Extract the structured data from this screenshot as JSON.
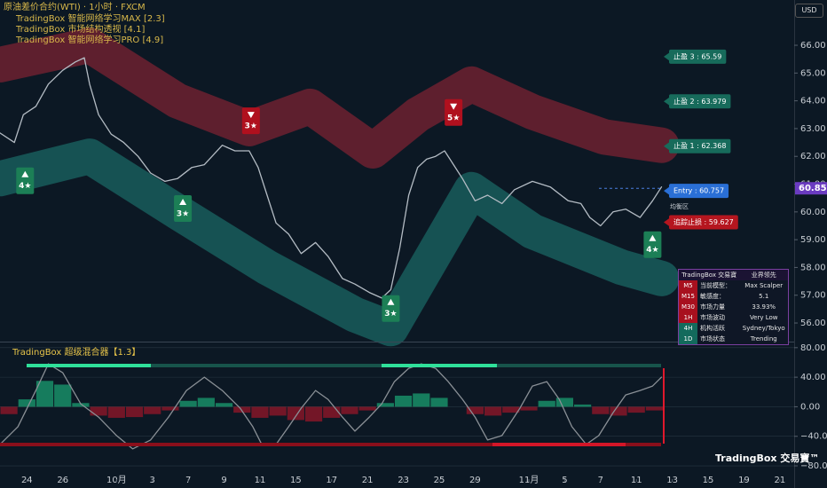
{
  "chart_data": [
    {
      "type": "line",
      "title": "原油差价合约(WTI) · 1小时 · FXCM",
      "indicators": [
        "TradingBox  智能网络学习MAX [2.3]",
        "TradingBox  市场结构透视 [4.1]",
        "TradingBox  智能网络学习PRO [4.9]"
      ],
      "xlim": [
        -1.5,
        42.8
      ],
      "ylim": [
        55.33,
        67.63
      ],
      "yticks": [
        {
          "value": 56,
          "label": "56.00"
        },
        {
          "value": 57,
          "label": "57.00"
        },
        {
          "value": 58,
          "label": "58.00"
        },
        {
          "value": 59,
          "label": "59.00"
        },
        {
          "value": 60,
          "label": "60.00"
        },
        {
          "value": 61,
          "label": "61.00"
        },
        {
          "value": 62,
          "label": "62.00"
        },
        {
          "value": 63,
          "label": "63.00"
        },
        {
          "value": 64,
          "label": "64.00"
        },
        {
          "value": 65,
          "label": "65.00"
        },
        {
          "value": 66,
          "label": "66.00"
        }
      ],
      "grid": false,
      "series": [
        {
          "style": "band",
          "color": "#7a2232",
          "x": [
            -1.5,
            3.5,
            8.4,
            12.4,
            15.8,
            19.3,
            21.8,
            24.8,
            28.2,
            32.2,
            35.4
          ],
          "values": [
            65.3,
            66.0,
            64.0,
            63.0,
            63.8,
            62.2,
            63.5,
            64.6,
            63.6,
            62.7,
            62.4
          ]
        },
        {
          "style": "band",
          "color": "#1a6663",
          "x": [
            -1.5,
            3.5,
            8.4,
            13.4,
            18.3,
            20.3,
            24.8,
            28.2,
            33.2,
            35.4
          ],
          "values": [
            61.2,
            62.0,
            60.0,
            58.0,
            56.3,
            55.8,
            60.8,
            59.3,
            58.0,
            57.6
          ]
        },
        {
          "style": "line",
          "color": "#b4bcc4",
          "x": [
            -1.5,
            -0.7,
            -0.2,
            0.5,
            1.2,
            2.0,
            2.7,
            3.2,
            3.5,
            4.0,
            4.7,
            5.4,
            6.2,
            6.9,
            7.7,
            8.4,
            9.2,
            9.9,
            10.9,
            11.6,
            12.4,
            12.9,
            13.4,
            13.9,
            14.6,
            15.3,
            16.1,
            16.8,
            17.6,
            18.3,
            19.1,
            19.8,
            20.3,
            20.8,
            21.3,
            21.8,
            22.3,
            22.8,
            23.3,
            23.8,
            24.3,
            25.0,
            25.7,
            26.5,
            27.2,
            28.2,
            29.2,
            30.2,
            30.9,
            31.4,
            32.0,
            32.7,
            33.4,
            34.2,
            34.9,
            35.4
          ],
          "values": [
            62.84,
            62.5,
            63.5,
            63.8,
            64.6,
            65.1,
            65.4,
            65.55,
            64.6,
            63.5,
            62.8,
            62.5,
            62.0,
            61.4,
            61.1,
            61.2,
            61.6,
            61.7,
            62.4,
            62.2,
            62.2,
            61.6,
            60.6,
            59.6,
            59.2,
            58.5,
            58.9,
            58.4,
            57.6,
            57.4,
            57.1,
            56.9,
            57.2,
            58.7,
            60.6,
            61.6,
            61.9,
            62.0,
            62.2,
            61.7,
            61.2,
            60.4,
            60.6,
            60.3,
            60.8,
            61.1,
            60.9,
            60.4,
            60.3,
            59.8,
            59.5,
            60.0,
            60.1,
            59.8,
            60.4,
            60.9
          ]
        }
      ],
      "signals": [
        {
          "kind": "buy",
          "label": "4★",
          "x": -0.1,
          "y": 61.6
        },
        {
          "kind": "buy",
          "label": "3★",
          "x": 8.7,
          "y": 60.6
        },
        {
          "kind": "sell",
          "label": "3★",
          "x": 12.5,
          "y": 62.8
        },
        {
          "kind": "buy",
          "label": "3★",
          "x": 20.3,
          "y": 57.0
        },
        {
          "kind": "sell",
          "label": "5★",
          "x": 23.8,
          "y": 63.1
        },
        {
          "kind": "buy",
          "label": "4★",
          "x": 34.9,
          "y": 59.3
        }
      ],
      "levels": [
        {
          "value": 65.59,
          "label": "止盈 3 : 65.59",
          "color": "#176b5b"
        },
        {
          "value": 63.979,
          "label": "止盈 2 : 63.979",
          "color": "#176b5b"
        },
        {
          "value": 62.368,
          "label": "止盈 1 : 62.368",
          "color": "#176b5b"
        },
        {
          "value": 60.757,
          "label": "Entry : 60.757",
          "color": "#2a6fd6"
        },
        {
          "value": 59.627,
          "label": "追踪止损 : 59.627",
          "color": "#b5161f"
        }
      ],
      "last_price": {
        "value": 60.85,
        "color": "#6a3bc0"
      },
      "zone_label": "均衡区"
    },
    {
      "type": "line",
      "title": "TradingBox   超级混合器【1.3】",
      "xlim": [
        -1.5,
        42.8
      ],
      "ylim": [
        -98,
        87
      ],
      "yticks": [
        {
          "value": 80,
          "label": "80.00"
        },
        {
          "value": 40,
          "label": "40.00"
        },
        {
          "value": 0,
          "label": "0.00"
        },
        {
          "value": -40,
          "label": "−40.00"
        },
        {
          "value": -80,
          "label": "−80.00"
        }
      ],
      "xticks": [
        {
          "value": 0,
          "label": "24"
        },
        {
          "value": 2,
          "label": "26"
        },
        {
          "value": 5,
          "label": "10月"
        },
        {
          "value": 7,
          "label": "3"
        },
        {
          "value": 9,
          "label": "7"
        },
        {
          "value": 11,
          "label": "9"
        },
        {
          "value": 13,
          "label": "11"
        },
        {
          "value": 15,
          "label": "15"
        },
        {
          "value": 17,
          "label": "17"
        },
        {
          "value": 19,
          "label": "21"
        },
        {
          "value": 21,
          "label": "23"
        },
        {
          "value": 23,
          "label": "25"
        },
        {
          "value": 25,
          "label": "29"
        },
        {
          "value": 28,
          "label": "11月"
        },
        {
          "value": 30,
          "label": "5"
        },
        {
          "value": 32,
          "label": "7"
        },
        {
          "value": 34,
          "label": "11"
        },
        {
          "value": 36,
          "label": "13"
        },
        {
          "value": 38,
          "label": "15"
        },
        {
          "value": 40,
          "label": "19"
        },
        {
          "value": 42,
          "label": "21"
        }
      ],
      "grid": true,
      "series": [
        {
          "style": "columns",
          "color": "#1fcf8c",
          "negative_color": "#c8152a",
          "x": [
            -1,
            0,
            1,
            2,
            3,
            4,
            5,
            6,
            7,
            8,
            9,
            10,
            11,
            12,
            13,
            14,
            15,
            16,
            17,
            18,
            19,
            20,
            21,
            22,
            23,
            24,
            25,
            26,
            27,
            28,
            29,
            30,
            31,
            32,
            33,
            34,
            35
          ],
          "values": [
            -10,
            10,
            35,
            30,
            5,
            -12,
            -15,
            -14,
            -10,
            -5,
            8,
            12,
            5,
            -8,
            -15,
            -12,
            -18,
            -20,
            -15,
            -10,
            -5,
            5,
            15,
            18,
            12,
            0,
            -10,
            -12,
            -8,
            -5,
            8,
            12,
            3,
            -10,
            -12,
            -8,
            -5
          ]
        },
        {
          "style": "line",
          "color": "#8a9096",
          "x": [
            -1.5,
            -0.5,
            0.5,
            1.2,
            2.0,
            3.0,
            4.0,
            5.0,
            5.9,
            6.9,
            7.9,
            8.9,
            9.9,
            10.9,
            11.9,
            12.6,
            13.1,
            13.9,
            14.6,
            15.3,
            16.1,
            16.8,
            17.6,
            18.3,
            19.1,
            19.8,
            20.5,
            21.3,
            22.0,
            22.8,
            23.5,
            24.3,
            25.0,
            25.7,
            26.5,
            27.5,
            28.2,
            29.0,
            29.7,
            30.4,
            31.2,
            31.9,
            32.7,
            33.4,
            34.2,
            34.9,
            35.4
          ],
          "values": [
            -51,
            -27,
            22,
            58,
            46,
            4,
            -14,
            -39,
            -57,
            -45,
            -14,
            22,
            40,
            22,
            -2,
            -27,
            -51,
            -51,
            -27,
            -2,
            22,
            10,
            -14,
            -33,
            -14,
            4,
            34,
            52,
            58,
            52,
            34,
            10,
            -14,
            -45,
            -39,
            -2,
            28,
            34,
            10,
            -27,
            -51,
            -39,
            -8,
            16,
            22,
            28,
            40
          ]
        }
      ]
    }
  ],
  "currency": "USD",
  "table": {
    "header": [
      "TradingBox 交易寶",
      "业界领先"
    ],
    "rows": [
      [
        "M5",
        "当前模型：",
        "Max Scalper"
      ],
      [
        "M15",
        "敏感度：",
        "5.1"
      ],
      [
        "M30",
        "市场力量",
        "33.93%"
      ],
      [
        "1H",
        "市场波动",
        "Very Low"
      ],
      [
        "4H",
        "机构活跃",
        "Sydney/Tokyo"
      ],
      [
        "1D",
        "市场状态",
        "Trending"
      ]
    ]
  },
  "watermark": "TradingBox 交易寶™"
}
